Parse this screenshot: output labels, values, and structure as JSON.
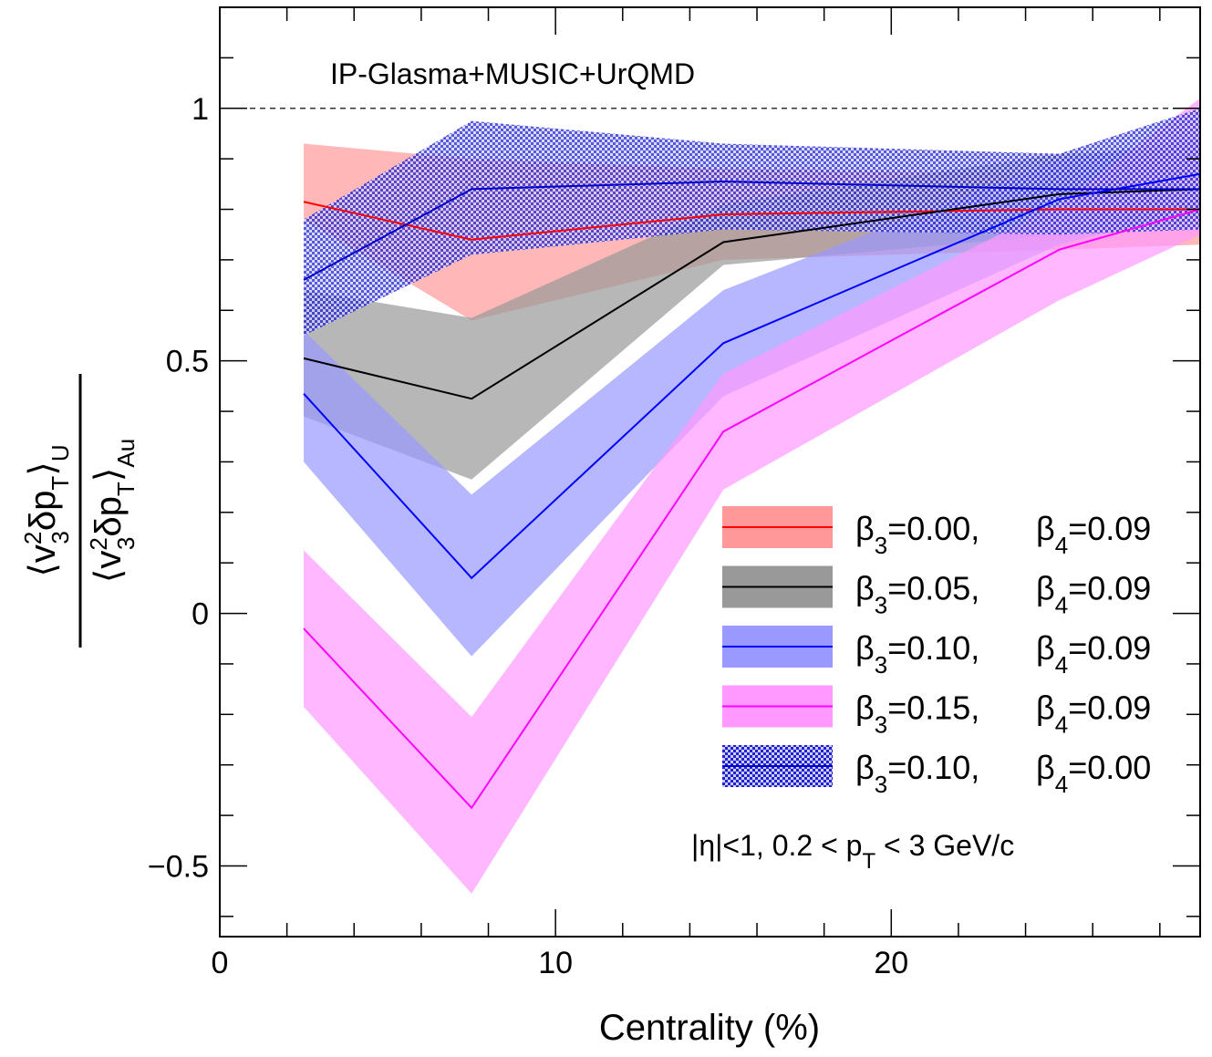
{
  "chart_data": {
    "type": "line",
    "title": "",
    "xlabel": "Centrality (%)",
    "ylabel": "⟨v3²δpT⟩U / ⟨v3²δpT⟩Au",
    "ylabel_parts": {
      "num_open": "⟨v",
      "num_sup": "2",
      "num_sub": "3",
      "num_mid": "δp",
      "num_sub_t": "T",
      "num_close": "⟩",
      "num_sub_u": "U",
      "den_open": "⟨v",
      "den_sup": "2",
      "den_sub": "3",
      "den_mid": "δp",
      "den_sub_t": "T",
      "den_close": "⟩",
      "den_sub_au": "Au"
    },
    "xlim": [
      0,
      29.2
    ],
    "ylim": [
      -0.64,
      1.2
    ],
    "x_ticks": [
      0,
      10,
      20
    ],
    "x_tick_labels": [
      "0",
      "10",
      "20"
    ],
    "y_ticks": [
      -0.5,
      0,
      0.5,
      1
    ],
    "y_tick_labels": [
      "−0.5",
      "0",
      "0.5",
      "1"
    ],
    "reference_line": 1.0,
    "x": [
      2.5,
      7.5,
      15,
      25,
      29.2
    ],
    "series": [
      {
        "name": "β3=0.00, β4=0.09",
        "color": "#ff0000",
        "band_color": "#ff9999",
        "band_style": "solid",
        "values": [
          0.815,
          0.74,
          0.79,
          0.8,
          0.8
        ],
        "upper": [
          0.93,
          0.9,
          0.88,
          0.87,
          0.87
        ],
        "lower": [
          0.78,
          0.58,
          0.7,
          0.72,
          0.73
        ]
      },
      {
        "name": "β3=0.05, β4=0.09",
        "color": "#000000",
        "band_color": "#999999",
        "band_style": "solid",
        "values": [
          0.505,
          0.425,
          0.735,
          0.83,
          0.84
        ],
        "upper": [
          0.64,
          0.585,
          0.81,
          0.91,
          0.92
        ],
        "lower": [
          0.39,
          0.265,
          0.69,
          0.75,
          0.78
        ]
      },
      {
        "name": "β3=0.10, β4=0.09",
        "color": "#0000ff",
        "band_color": "#9999ff",
        "band_style": "solid",
        "values": [
          0.435,
          0.07,
          0.535,
          0.82,
          0.87
        ],
        "upper": [
          0.56,
          0.235,
          0.64,
          0.9,
          0.94
        ],
        "lower": [
          0.3,
          -0.085,
          0.43,
          0.73,
          0.8
        ]
      },
      {
        "name": "β3=0.15, β4=0.09",
        "color": "#ff00ff",
        "band_color": "#ff99ff",
        "band_style": "solid",
        "values": [
          -0.03,
          -0.385,
          0.36,
          0.72,
          0.8
        ],
        "upper": [
          0.125,
          -0.205,
          0.475,
          0.81,
          1.02
        ],
        "lower": [
          -0.185,
          -0.555,
          0.245,
          0.62,
          0.75
        ]
      },
      {
        "name": "β3=0.10, β4=0.00",
        "color": "#0000cc",
        "band_color": "#3333dd",
        "band_style": "hatched",
        "values": [
          0.66,
          0.84,
          0.855,
          0.84,
          0.84
        ],
        "upper": [
          0.78,
          0.975,
          0.93,
          0.91,
          1.0
        ],
        "lower": [
          0.55,
          0.71,
          0.76,
          0.75,
          0.76
        ]
      }
    ],
    "legend": {
      "placement": "bottom-right",
      "entries": [
        {
          "b3": "β",
          "b3_sub": "3",
          "b3_val": "=0.00,",
          "b4": "β",
          "b4_sub": "4",
          "b4_val": "=0.09"
        },
        {
          "b3": "β",
          "b3_sub": "3",
          "b3_val": "=0.05,",
          "b4": "β",
          "b4_sub": "4",
          "b4_val": "=0.09"
        },
        {
          "b3": "β",
          "b3_sub": "3",
          "b3_val": "=0.10,",
          "b4": "β",
          "b4_sub": "4",
          "b4_val": "=0.09"
        },
        {
          "b3": "β",
          "b3_sub": "3",
          "b3_val": "=0.15,",
          "b4": "β",
          "b4_sub": "4",
          "b4_val": "=0.09"
        },
        {
          "b3": "β",
          "b3_sub": "3",
          "b3_val": "=0.10,",
          "b4": "β",
          "b4_sub": "4",
          "b4_val": "=0.00"
        }
      ]
    },
    "annotations": {
      "model": "IP-Glasma+MUSIC+UrQMD",
      "cuts_a": "|η|<1, 0.2 < p",
      "cuts_sub": "T",
      "cuts_b": " < 3 GeV/c"
    }
  }
}
